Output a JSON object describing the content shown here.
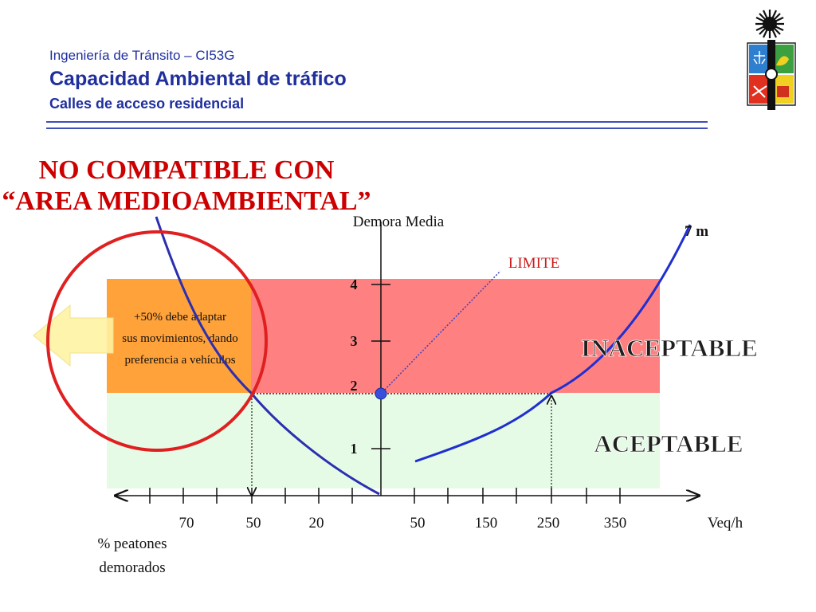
{
  "header": {
    "course": "Ingeniería de Tránsito – CI53G",
    "title": "Capacidad Ambiental de tráfico",
    "subtitle": "Calles de acceso residencial"
  },
  "warning": {
    "line1": "NO COMPATIBLE CON",
    "line2": "“AREA MEDIOAMBIENTAL”",
    "color": "#cc0000"
  },
  "note": {
    "line1": "+50% debe adaptar",
    "line2": "sus movimientos, dando",
    "line3": "preferencia a vehículos"
  },
  "chart_data": {
    "type": "line",
    "ylabel": "Demora Media",
    "yticks": [
      "4",
      "3",
      "2",
      "1"
    ],
    "xticks_left": [
      "70",
      "50",
      "20"
    ],
    "xticks_right": [
      "50",
      "150",
      "250",
      "350"
    ],
    "xlabel_right": "Veq/h",
    "xlabel_left_line1": "% peatones",
    "xlabel_left_line2": "demorados",
    "limit_label": "LIMITE",
    "limit_value": 2,
    "zones": [
      {
        "name": "INACEPTABLE",
        "from": 2,
        "to": 4,
        "color": "#ff8080"
      },
      {
        "name": "ACEPTABLE",
        "from": 0,
        "to": 2,
        "color": "#e6fbe6"
      }
    ],
    "series": [
      {
        "name": "7 m",
        "color": "#1f2fd0"
      }
    ],
    "pedestrian_curve_color": "#2b2fb0",
    "note_zone_color": "#ffa23a"
  }
}
